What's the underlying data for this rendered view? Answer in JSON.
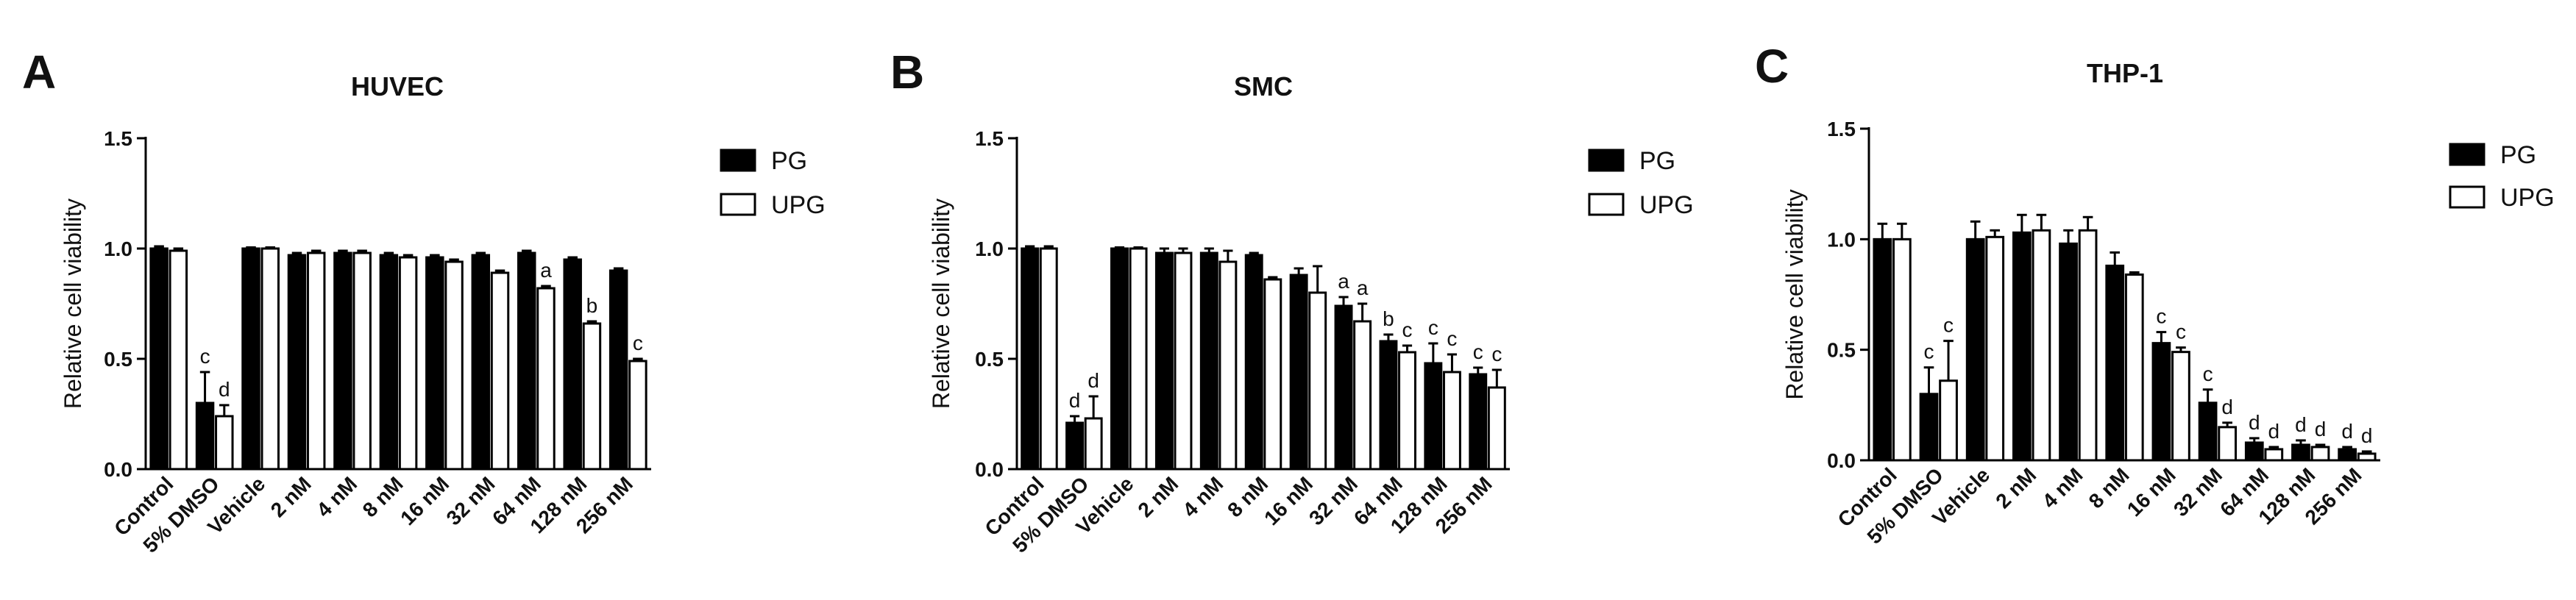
{
  "chart_data": [
    {
      "type": "bar",
      "panel": "A",
      "title": "HUVEC",
      "xlabel": "",
      "ylabel": "Relative cell viability",
      "ylim": [
        0,
        1.5
      ],
      "yticks": [
        "0.0",
        "0.5",
        "1.0",
        "1.5"
      ],
      "categories": [
        "Control",
        "5% DMSO",
        "Vehicle",
        "2 nM",
        "4 nM",
        "8 nM",
        "16 nM",
        "32 nM",
        "64 nM",
        "128 nM",
        "256 nM"
      ],
      "series": [
        {
          "name": "PG",
          "color": "#000000",
          "values": [
            1.0,
            0.3,
            1.0,
            0.97,
            0.98,
            0.97,
            0.96,
            0.97,
            0.98,
            0.95,
            0.9
          ],
          "errors": [
            0.01,
            0.14,
            0.005,
            0.01,
            0.01,
            0.01,
            0.01,
            0.01,
            0.01,
            0.01,
            0.01
          ],
          "annotations": [
            "",
            "c",
            "",
            "",
            "",
            "",
            "",
            "",
            "",
            "",
            ""
          ]
        },
        {
          "name": "UPG",
          "color": "#ffffff",
          "values": [
            0.99,
            0.24,
            1.0,
            0.98,
            0.98,
            0.96,
            0.94,
            0.89,
            0.82,
            0.66,
            0.49
          ],
          "errors": [
            0.01,
            0.05,
            0.005,
            0.01,
            0.01,
            0.01,
            0.01,
            0.01,
            0.01,
            0.01,
            0.01
          ],
          "annotations": [
            "",
            "d",
            "",
            "",
            "",
            "",
            "",
            "",
            "a",
            "b",
            "c"
          ]
        }
      ],
      "legend": {
        "position": "right",
        "entries": [
          "PG",
          "UPG"
        ]
      },
      "grid": false
    },
    {
      "type": "bar",
      "panel": "B",
      "title": "SMC",
      "xlabel": "",
      "ylabel": "Relative cell viability",
      "ylim": [
        0,
        1.5
      ],
      "yticks": [
        "0.0",
        "0.5",
        "1.0",
        "1.5"
      ],
      "categories": [
        "Control",
        "5% DMSO",
        "Vehicle",
        "2 nM",
        "4 nM",
        "8 nM",
        "16 nM",
        "32 nM",
        "64 nM",
        "128 nM",
        "256 nM"
      ],
      "series": [
        {
          "name": "PG",
          "color": "#000000",
          "values": [
            1.0,
            0.21,
            1.0,
            0.98,
            0.98,
            0.97,
            0.88,
            0.74,
            0.58,
            0.48,
            0.43
          ],
          "errors": [
            0.01,
            0.03,
            0.005,
            0.02,
            0.02,
            0.01,
            0.03,
            0.04,
            0.03,
            0.09,
            0.03
          ],
          "annotations": [
            "",
            "d",
            "",
            "",
            "",
            "",
            "",
            "a",
            "b",
            "c",
            "c"
          ]
        },
        {
          "name": "UPG",
          "color": "#ffffff",
          "values": [
            1.0,
            0.23,
            1.0,
            0.98,
            0.94,
            0.86,
            0.8,
            0.67,
            0.53,
            0.44,
            0.37
          ],
          "errors": [
            0.01,
            0.1,
            0.005,
            0.02,
            0.05,
            0.01,
            0.12,
            0.08,
            0.03,
            0.08,
            0.08
          ],
          "annotations": [
            "",
            "d",
            "",
            "",
            "",
            "",
            "",
            "a",
            "c",
            "c",
            "c"
          ]
        }
      ],
      "legend": {
        "position": "right",
        "entries": [
          "PG",
          "UPG"
        ]
      },
      "grid": false
    },
    {
      "type": "bar",
      "panel": "C",
      "title": "THP-1",
      "xlabel": "",
      "ylabel": "Relative cell viability",
      "ylim": [
        0,
        1.5
      ],
      "yticks": [
        "0.0",
        "0.5",
        "1.0",
        "1.5"
      ],
      "categories": [
        "Control",
        "5% DMSO",
        "Vehicle",
        "2 nM",
        "4 nM",
        "8 nM",
        "16 nM",
        "32 nM",
        "64 nM",
        "128 nM",
        "256 nM"
      ],
      "series": [
        {
          "name": "PG",
          "color": "#000000",
          "values": [
            1.0,
            0.3,
            1.0,
            1.03,
            0.98,
            0.88,
            0.53,
            0.26,
            0.08,
            0.07,
            0.05
          ],
          "errors": [
            0.07,
            0.12,
            0.08,
            0.08,
            0.06,
            0.06,
            0.05,
            0.06,
            0.02,
            0.02,
            0.01
          ],
          "annotations": [
            "",
            "c",
            "",
            "",
            "",
            "",
            "c",
            "c",
            "d",
            "d",
            "d"
          ]
        },
        {
          "name": "UPG",
          "color": "#ffffff",
          "values": [
            1.0,
            0.36,
            1.01,
            1.04,
            1.04,
            0.84,
            0.49,
            0.15,
            0.05,
            0.06,
            0.03
          ],
          "errors": [
            0.07,
            0.18,
            0.03,
            0.07,
            0.06,
            0.01,
            0.02,
            0.02,
            0.01,
            0.01,
            0.01
          ],
          "annotations": [
            "",
            "c",
            "",
            "",
            "",
            "",
            "c",
            "d",
            "d",
            "d",
            "d"
          ]
        }
      ],
      "legend": {
        "position": "right",
        "entries": [
          "PG",
          "UPG"
        ]
      },
      "grid": false
    }
  ]
}
